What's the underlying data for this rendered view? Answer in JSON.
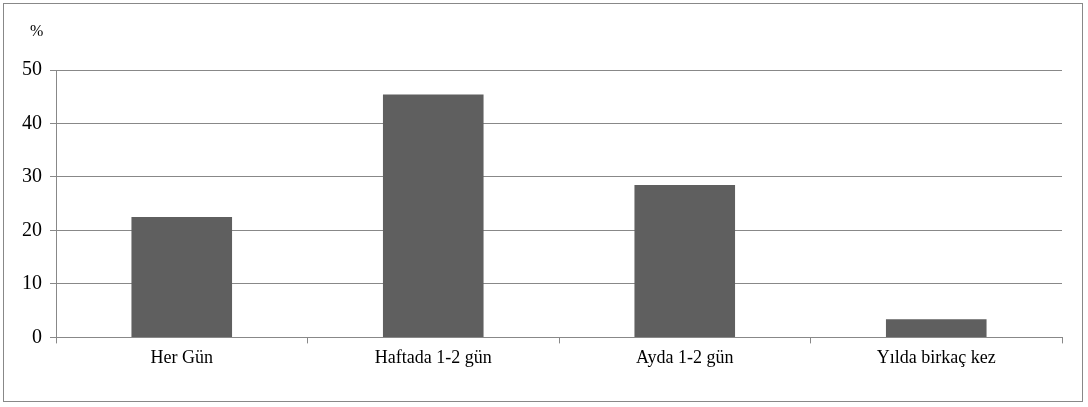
{
  "chart_data": {
    "type": "bar",
    "ylabel": "%",
    "categories": [
      "Her Gün",
      "Haftada 1-2 gün",
      "Ayda 1-2 gün",
      "Yılda birkaç kez"
    ],
    "values": [
      22.5,
      45.4,
      28.5,
      3.4
    ],
    "color": "#5f5f5f",
    "ylim": [
      0,
      50
    ],
    "yticks": [
      0,
      10,
      20,
      30,
      40,
      50
    ],
    "grid": "y",
    "legend": false
  }
}
